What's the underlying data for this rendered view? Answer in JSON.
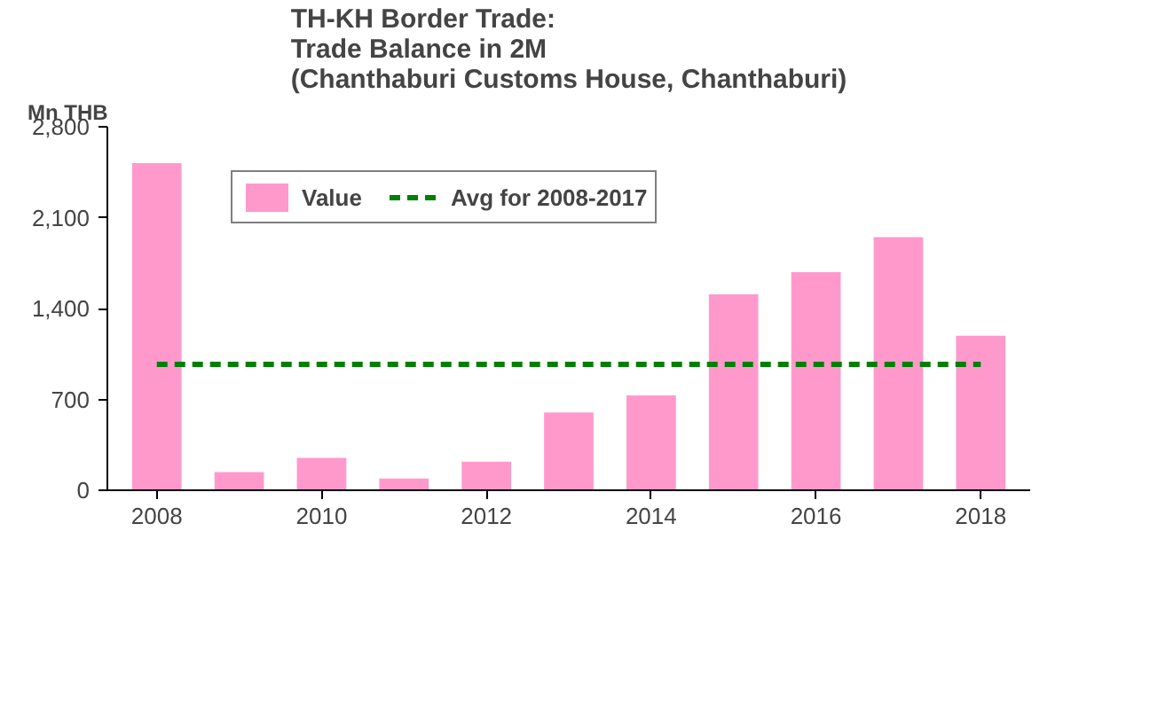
{
  "chart_data": {
    "type": "bar",
    "title": "TH-KH Border Trade:\nTrade Balance in 2M\n(Chanthaburi Customs House, Chanthaburi)",
    "ylabel": "Mn THB",
    "x": [
      2008,
      2009,
      2010,
      2011,
      2012,
      2013,
      2014,
      2015,
      2016,
      2017,
      2018
    ],
    "series": [
      {
        "name": "Value",
        "color": "#ff99cc",
        "values": [
          2520,
          140,
          250,
          90,
          220,
          600,
          730,
          1510,
          1680,
          1950,
          1190
        ]
      },
      {
        "name": "Avg for 2008-2017",
        "color": "#008000",
        "type": "line",
        "line_style": "dashed",
        "values": [
          970,
          970,
          970,
          970,
          970,
          970,
          970,
          970,
          970,
          970,
          970
        ]
      }
    ],
    "xlim": [
      2007.4,
      2018.6
    ],
    "xticks": [
      2008,
      2010,
      2012,
      2014,
      2016,
      2018
    ],
    "ylim": [
      0,
      2800
    ],
    "yticks": [
      0,
      {
        "value": 700,
        "label": "700"
      },
      {
        "value": 1400,
        "label": "1,400"
      },
      {
        "value": 2100,
        "label": "2,100"
      },
      {
        "value": 2800,
        "label": "2,800"
      }
    ],
    "grid": false,
    "legend": "top"
  }
}
